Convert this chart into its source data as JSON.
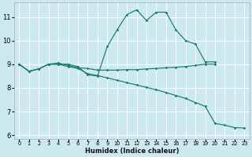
{
  "background_color": "#cce9f0",
  "grid_color": "#ffffff",
  "line_color": "#1a7a6e",
  "xlabel": "Humidex (Indice chaleur)",
  "xlim": [
    -0.5,
    23.5
  ],
  "ylim": [
    5.85,
    11.6
  ],
  "yticks": [
    6,
    7,
    8,
    9,
    10,
    11
  ],
  "xticks": [
    0,
    1,
    2,
    3,
    4,
    5,
    6,
    7,
    8,
    9,
    10,
    11,
    12,
    13,
    14,
    15,
    16,
    17,
    18,
    19,
    20,
    21,
    22,
    23
  ],
  "series": [
    {
      "x": [
        0,
        1,
        2,
        3,
        4,
        5,
        6,
        7,
        8,
        9,
        10,
        11,
        12,
        13,
        14,
        15,
        16,
        17,
        18,
        19,
        20
      ],
      "y": [
        9.0,
        8.7,
        8.8,
        9.0,
        9.0,
        9.0,
        8.9,
        8.55,
        8.5,
        9.75,
        10.45,
        11.1,
        11.3,
        10.85,
        11.2,
        11.2,
        10.45,
        10.0,
        9.85,
        9.1,
        9.1
      ]
    },
    {
      "x": [
        0,
        1,
        2,
        3,
        4,
        5,
        6,
        7,
        8,
        9,
        10,
        11,
        12,
        13,
        14,
        15,
        16,
        17,
        18,
        19,
        20
      ],
      "y": [
        9.0,
        8.7,
        8.8,
        9.0,
        9.05,
        8.95,
        8.85,
        8.82,
        8.75,
        8.75,
        8.75,
        8.77,
        8.77,
        8.8,
        8.82,
        8.85,
        8.87,
        8.9,
        8.95,
        9.0,
        9.0
      ]
    },
    {
      "x": [
        0,
        1,
        2,
        3,
        4,
        5,
        6,
        7,
        8,
        9,
        10,
        11,
        12,
        13,
        14,
        15,
        16,
        17,
        18,
        19,
        20,
        21,
        22,
        23
      ],
      "y": [
        9.0,
        8.7,
        8.8,
        9.0,
        9.0,
        8.9,
        8.82,
        8.6,
        8.52,
        8.42,
        8.32,
        8.22,
        8.12,
        8.02,
        7.92,
        7.8,
        7.68,
        7.55,
        7.38,
        7.22,
        6.5,
        6.42,
        6.32,
        6.3
      ]
    }
  ]
}
